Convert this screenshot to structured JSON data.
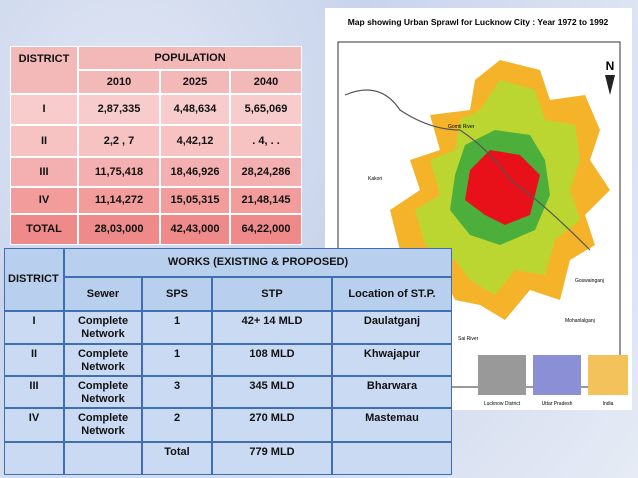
{
  "population": {
    "district_header": "DISTRICT",
    "title": "POPULATION",
    "years": [
      "2010",
      "2025",
      "2040"
    ],
    "rows": [
      [
        "I",
        "2,87,335",
        "4,48,634",
        "5,65,069"
      ],
      [
        "II",
        "2,2 , 7",
        "4,42,12",
        ". 4, . ."
      ],
      [
        "III",
        "11,75,418",
        "18,46,926",
        "28,24,286"
      ],
      [
        "IV",
        "11,14,272",
        "15,05,315",
        "21,48,145"
      ],
      [
        "TOTAL",
        "28,03,000",
        "42,43,000",
        "64,22,000"
      ]
    ]
  },
  "works": {
    "district_header": "DISTRICT",
    "title": "WORKS (EXISTING & PROPOSED)",
    "columns": [
      "Sewer",
      "SPS",
      "STP",
      "Location of ST.P."
    ],
    "rows": [
      [
        "I",
        "Complete Network",
        "1",
        "42+ 14 MLD",
        "Daulatganj"
      ],
      [
        "II",
        "Complete Network",
        "1",
        "108 MLD",
        "Khwajapur"
      ],
      [
        "III",
        "Complete Network",
        "3",
        "345 MLD",
        "Bharwara"
      ],
      [
        "IV",
        "Complete Network",
        "2",
        "270 MLD",
        "Mastemau"
      ]
    ],
    "total_label": "Total",
    "total_value": "779 MLD"
  },
  "map": {
    "title": "Map showing Urban Sprawl for Lucknow City : Year 1972 to 1992",
    "north": "N",
    "places": [
      "Kakori",
      "Goswainganj",
      "Mohanlalganj",
      "Sai River",
      "Gomti River"
    ],
    "insets": [
      "Lucknow District",
      "Uttar Pradesh",
      "India"
    ]
  }
}
